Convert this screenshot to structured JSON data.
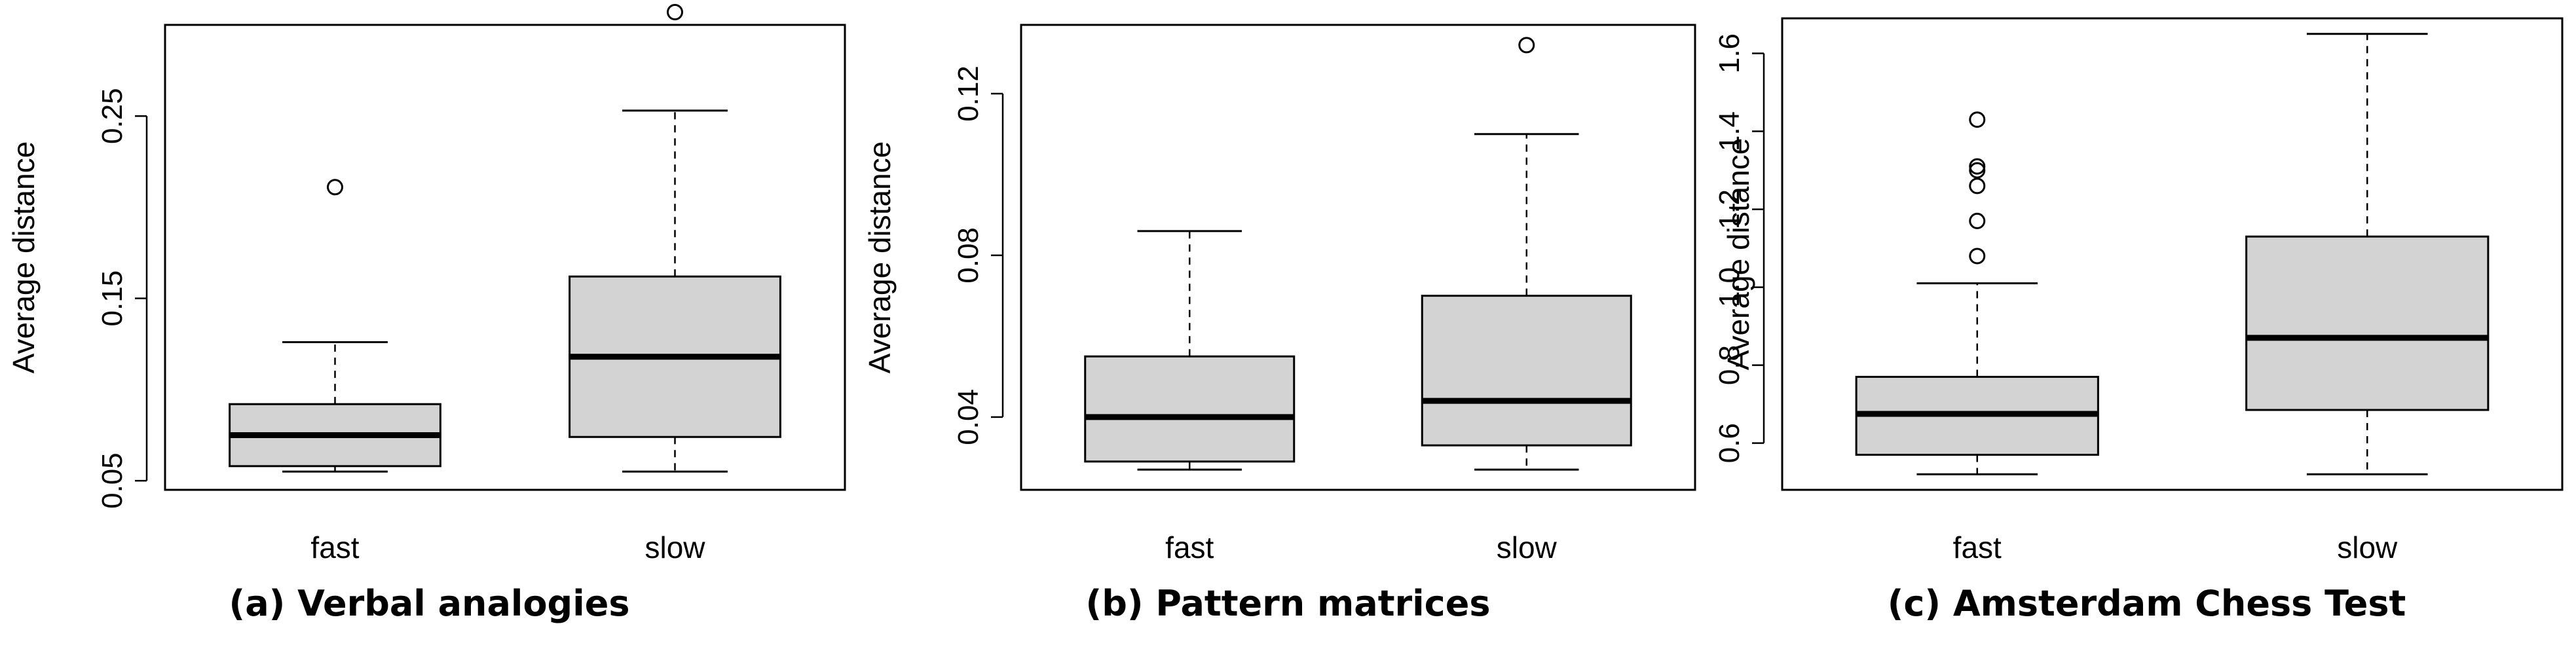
{
  "chart_data": [
    {
      "type": "boxplot",
      "caption": "(a) Verbal analogies",
      "ylabel": "Average distance",
      "categories": [
        "fast",
        "slow"
      ],
      "ylim": [
        0.045,
        0.3
      ],
      "yticks": [
        0.05,
        0.15,
        0.25
      ],
      "ytick_labels": [
        "0.05",
        "0.15",
        "0.25"
      ],
      "boxes": [
        {
          "name": "fast",
          "whisker_low": 0.055,
          "q1": 0.058,
          "median": 0.075,
          "q3": 0.092,
          "whisker_high": 0.126,
          "outliers": [
            0.211
          ]
        },
        {
          "name": "slow",
          "whisker_low": 0.055,
          "q1": 0.074,
          "median": 0.118,
          "q3": 0.162,
          "whisker_high": 0.253,
          "outliers": [
            0.307
          ]
        }
      ]
    },
    {
      "type": "boxplot",
      "caption": "(b) Pattern matrices",
      "ylabel": "Average distance",
      "categories": [
        "fast",
        "slow"
      ],
      "ylim": [
        0.022,
        0.137
      ],
      "yticks": [
        0.04,
        0.08,
        0.12
      ],
      "ytick_labels": [
        "0.04",
        "0.08",
        "0.12"
      ],
      "boxes": [
        {
          "name": "fast",
          "whisker_low": 0.027,
          "q1": 0.029,
          "median": 0.04,
          "q3": 0.055,
          "whisker_high": 0.086,
          "outliers": []
        },
        {
          "name": "slow",
          "whisker_low": 0.027,
          "q1": 0.033,
          "median": 0.044,
          "q3": 0.07,
          "whisker_high": 0.11,
          "outliers": [
            0.132
          ]
        }
      ]
    },
    {
      "type": "boxplot",
      "caption": "(c) Amsterdam Chess Test",
      "ylabel": "Average distance",
      "categories": [
        "fast",
        "slow"
      ],
      "ylim": [
        0.48,
        1.69
      ],
      "yticks": [
        0.6,
        0.8,
        1.0,
        1.2,
        1.4,
        1.6
      ],
      "ytick_labels": [
        "0.6",
        "0.8",
        "1.0",
        "1.2",
        "1.4",
        "1.6"
      ],
      "boxes": [
        {
          "name": "fast",
          "whisker_low": 0.52,
          "q1": 0.57,
          "median": 0.675,
          "q3": 0.77,
          "whisker_high": 1.01,
          "outliers": [
            1.08,
            1.17,
            1.26,
            1.3,
            1.31,
            1.43
          ]
        },
        {
          "name": "slow",
          "whisker_low": 0.52,
          "q1": 0.685,
          "median": 0.87,
          "q3": 1.13,
          "whisker_high": 1.65,
          "outliers": []
        }
      ]
    }
  ]
}
